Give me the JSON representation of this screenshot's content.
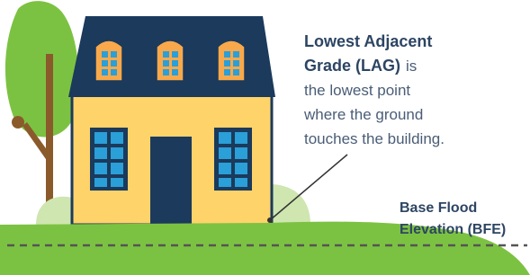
{
  "lag": {
    "term": [
      "Lowest Adjacent",
      "Grade (LAG)"
    ],
    "description": [
      "is",
      "the lowest point",
      "where the ground",
      "touches the building."
    ]
  },
  "bfe": {
    "lines": [
      "Base Flood",
      "Elevation (BFE)"
    ]
  }
}
